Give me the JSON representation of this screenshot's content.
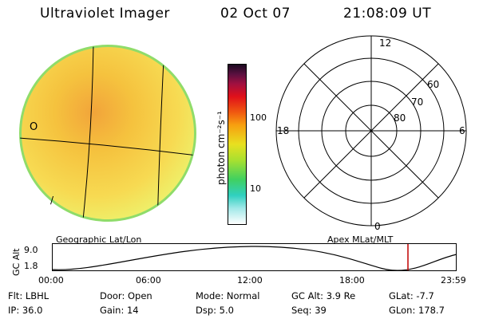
{
  "header": {
    "title": "Ultraviolet Imager",
    "date": "02 Oct 07",
    "time": "21:08:09 UT"
  },
  "colorbar": {
    "unit_label": "photon cm⁻²s⁻¹",
    "ticks": [
      "100",
      "10"
    ]
  },
  "polar_plot": {
    "mlt_labels": [
      "12",
      "18",
      "6",
      "0"
    ],
    "mlat_labels": [
      "60",
      "70",
      "80"
    ]
  },
  "labels": {
    "left_caption": "Geographic Lat/Lon",
    "right_caption": "Apex MLat/MLT"
  },
  "altitude_plot": {
    "ylabel": "GC Alt",
    "y_ticks": [
      "9.0",
      "1.8"
    ],
    "x_ticks": [
      "00:00",
      "06:00",
      "12:00",
      "18:00",
      "23:59"
    ],
    "current_time_color": "#c00000"
  },
  "info": {
    "flt": "Flt: LBHL",
    "door": "Door: Open",
    "mode": "Mode: Normal",
    "gc_alt": "GC Alt: 3.9 Re",
    "glat": "GLat:  -7.7",
    "ip": "IP: 36.0",
    "gain": "Gain: 14",
    "dsp": "Dsp:    5.0",
    "seq": "Seq: 39",
    "glon": "GLon: 178.7"
  },
  "colors": {
    "disk_main": "#f3d34a",
    "disk_limb": "#8fdc6a"
  }
}
